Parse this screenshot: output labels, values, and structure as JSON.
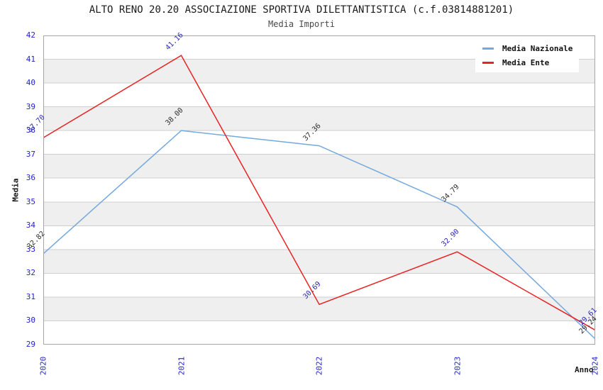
{
  "chart_data": {
    "type": "line",
    "title": "ALTO RENO 20.20 ASSOCIAZIONE SPORTIVA DILETTANTISTICA (c.f.03814881201)",
    "subtitle": "Media Importi",
    "xlabel": "Anno",
    "ylabel": "Media",
    "categories": [
      "2020",
      "2021",
      "2022",
      "2023",
      "2024"
    ],
    "series": [
      {
        "name": "Media Nazionale",
        "color": "#74A9DC",
        "label_color": "#2E2E2E",
        "values": [
          32.82,
          38.0,
          37.36,
          34.79,
          29.24
        ]
      },
      {
        "name": "Media Ente",
        "color": "#E82323",
        "label_color": "#2B2BB4",
        "values": [
          37.7,
          41.16,
          30.69,
          32.9,
          29.61
        ]
      }
    ],
    "ylim": [
      29,
      42
    ],
    "y_tick_step": 1,
    "grid": true,
    "legend_position": "top-right",
    "value_label_decimals": 2,
    "colors": {
      "tick_label": "#2323CC",
      "band": "#EFEFEF",
      "grid_line": "#CFCFCF",
      "plot_border": "#A6A6A6"
    }
  }
}
